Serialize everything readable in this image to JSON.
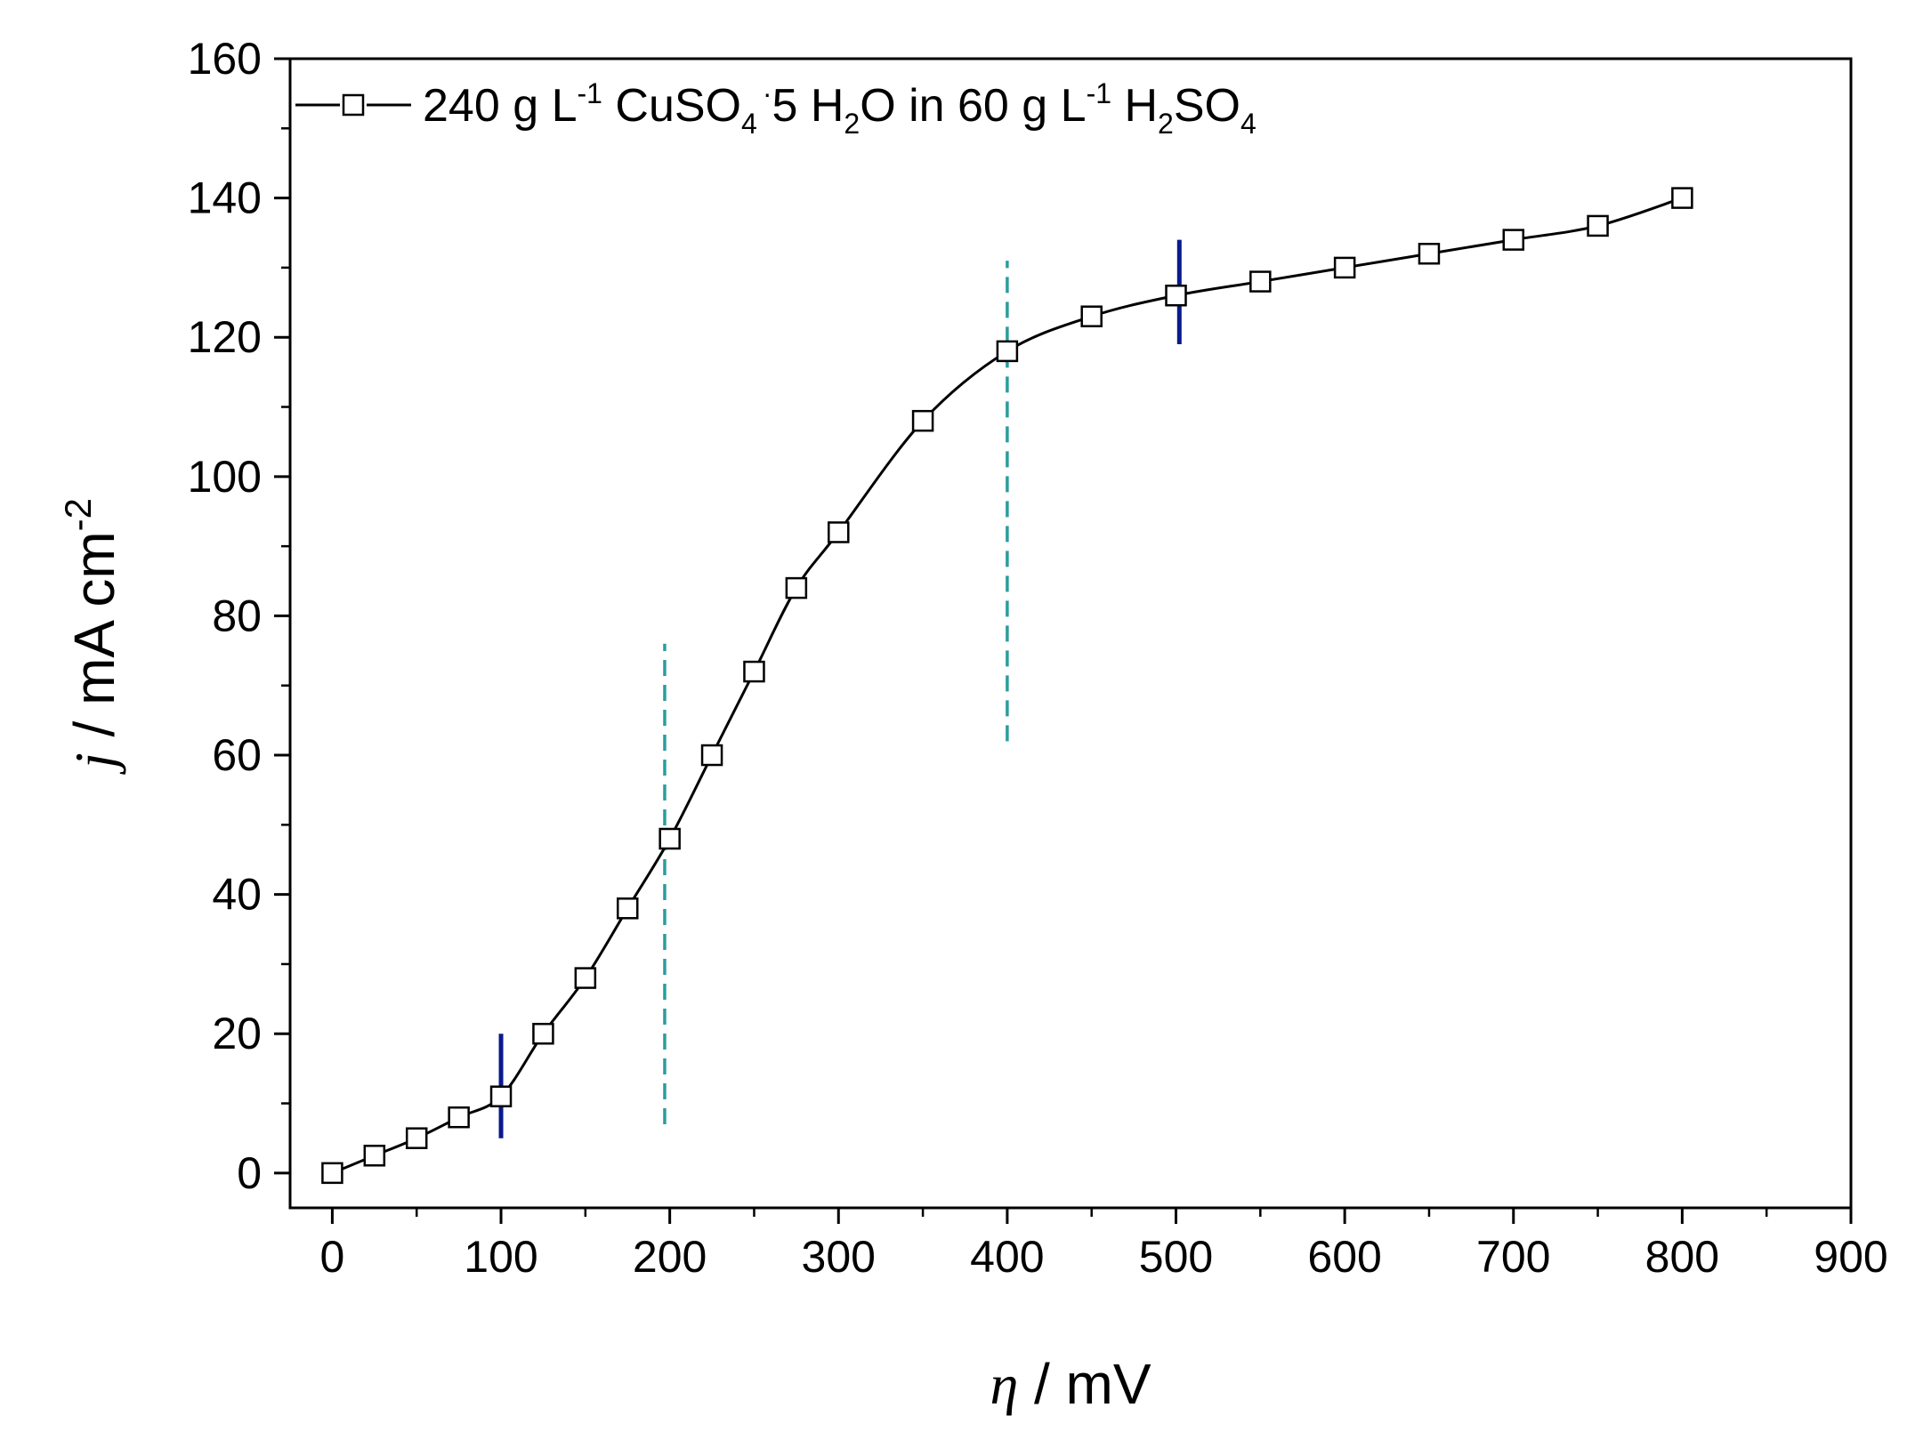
{
  "chart_data": {
    "type": "line",
    "title": "",
    "xlabel": {
      "symbol": "η",
      "unit": " / mV"
    },
    "ylabel": {
      "symbol": "j",
      "unit": " / mA cm",
      "exponent": "-2"
    },
    "xlim": [
      -25,
      900
    ],
    "ylim": [
      -5,
      160
    ],
    "xticks": [
      0,
      100,
      200,
      300,
      400,
      500,
      600,
      700,
      800,
      900
    ],
    "yticks": [
      0,
      20,
      40,
      60,
      80,
      100,
      120,
      140,
      160
    ],
    "grid": false,
    "legend_position": "top-left",
    "legend": {
      "parts": [
        {
          "text": "240 g L",
          "role": "base"
        },
        {
          "text": "-1",
          "role": "sup"
        },
        {
          "text": " CuSO",
          "role": "base"
        },
        {
          "text": "4",
          "role": "sub"
        },
        {
          "text": "·",
          "role": "sup"
        },
        {
          "text": "5 H",
          "role": "base"
        },
        {
          "text": "2",
          "role": "sub"
        },
        {
          "text": "O in 60 g L",
          "role": "base"
        },
        {
          "text": "-1",
          "role": "sup"
        },
        {
          "text": " H",
          "role": "base"
        },
        {
          "text": "2",
          "role": "sub"
        },
        {
          "text": "SO",
          "role": "base"
        },
        {
          "text": "4",
          "role": "sub"
        }
      ]
    },
    "series": [
      {
        "name": "240 g L-1 CuSO4 · 5 H2O in 60 g L-1 H2SO4",
        "marker": "open-square",
        "color": "#000000",
        "x": [
          0,
          25,
          50,
          75,
          100,
          125,
          150,
          175,
          200,
          225,
          250,
          275,
          300,
          350,
          400,
          450,
          500,
          550,
          600,
          650,
          700,
          750,
          800
        ],
        "y": [
          0,
          2.5,
          5,
          8,
          11,
          20,
          28,
          38,
          48,
          60,
          72,
          84,
          92,
          108,
          118,
          123,
          126,
          128,
          130,
          132,
          134,
          136,
          140
        ]
      }
    ],
    "vertical_markers": [
      {
        "x": 100,
        "y_from": 5,
        "y_to": 20,
        "style": "solid",
        "color": "#0a1a8c"
      },
      {
        "x": 197,
        "y_from": 7,
        "y_to": 76,
        "style": "dashed",
        "color": "#2a9d9d"
      },
      {
        "x": 400,
        "y_from": 62,
        "y_to": 131,
        "style": "dashed",
        "color": "#2a9d9d"
      },
      {
        "x": 502,
        "y_from": 119,
        "y_to": 134,
        "style": "solid",
        "color": "#0a1a8c"
      }
    ]
  }
}
